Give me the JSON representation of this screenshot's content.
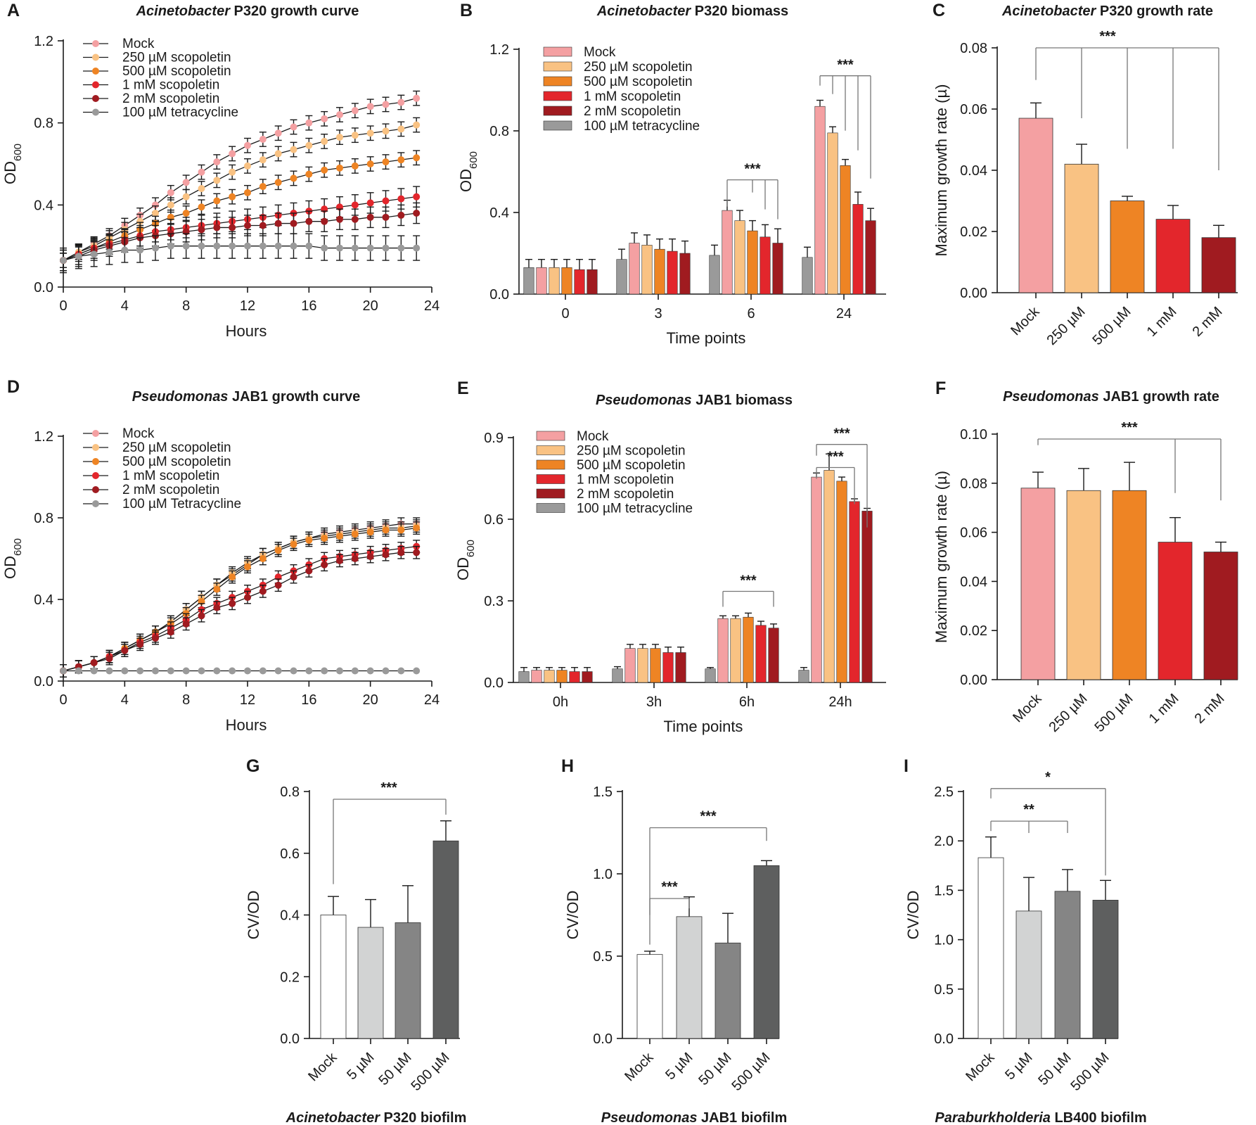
{
  "colors": {
    "mock": "#F4A0A2",
    "s250": "#F9C283",
    "s500": "#EE8424",
    "s1mM": "#E3262C",
    "s2mM": "#A01B20",
    "tetra": "#9A9A9A",
    "bf_mock": "#FFFFFF",
    "bf_low": "#D2D3D3",
    "bf_mid": "#858585",
    "bf_high": "#5E5F5F"
  },
  "chart_data": [
    {
      "id": "A",
      "type": "line",
      "title_italic": "Acinetobacter",
      "title_rest": " P320 growth curve",
      "xlabel": "Hours",
      "ylabel": "OD",
      "ylabel_sub": "600",
      "xlim": [
        0,
        24
      ],
      "ylim": [
        0,
        1.2
      ],
      "xticks": [
        0,
        4,
        8,
        12,
        16,
        20,
        24
      ],
      "yticks": [
        0.0,
        0.4,
        0.8,
        1.2
      ],
      "ytick_labels": [
        "0.0",
        "0.4",
        "0.8",
        "1.2"
      ],
      "x": [
        0,
        1,
        2,
        3,
        4,
        5,
        6,
        7,
        8,
        9,
        10,
        11,
        12,
        13,
        14,
        15,
        16,
        17,
        18,
        19,
        20,
        21,
        22,
        23
      ],
      "series": [
        {
          "name": "Mock",
          "color_key": "mock",
          "err": 0.035,
          "values": [
            0.13,
            0.17,
            0.21,
            0.25,
            0.3,
            0.35,
            0.4,
            0.46,
            0.51,
            0.56,
            0.61,
            0.65,
            0.69,
            0.72,
            0.75,
            0.78,
            0.8,
            0.82,
            0.84,
            0.86,
            0.88,
            0.89,
            0.9,
            0.92
          ]
        },
        {
          "name": "250 µM scopoletin",
          "color_key": "s250",
          "err": 0.035,
          "values": [
            0.13,
            0.17,
            0.2,
            0.24,
            0.28,
            0.32,
            0.36,
            0.4,
            0.44,
            0.48,
            0.52,
            0.56,
            0.59,
            0.62,
            0.65,
            0.67,
            0.69,
            0.71,
            0.73,
            0.74,
            0.75,
            0.76,
            0.77,
            0.79
          ]
        },
        {
          "name": "500 µM scopoletin",
          "color_key": "s500",
          "err": 0.035,
          "values": [
            0.13,
            0.16,
            0.19,
            0.22,
            0.25,
            0.28,
            0.31,
            0.34,
            0.36,
            0.39,
            0.42,
            0.44,
            0.46,
            0.49,
            0.51,
            0.53,
            0.55,
            0.57,
            0.58,
            0.59,
            0.6,
            0.61,
            0.62,
            0.63
          ]
        },
        {
          "name": "1 mM scopoletin",
          "color_key": "s1mM",
          "err": 0.05,
          "values": [
            0.13,
            0.16,
            0.19,
            0.21,
            0.23,
            0.25,
            0.27,
            0.28,
            0.29,
            0.3,
            0.31,
            0.32,
            0.33,
            0.34,
            0.35,
            0.36,
            0.37,
            0.38,
            0.39,
            0.4,
            0.41,
            0.42,
            0.43,
            0.44
          ]
        },
        {
          "name": "2 mM scopoletin",
          "color_key": "s2mM",
          "err": 0.05,
          "values": [
            0.13,
            0.15,
            0.18,
            0.2,
            0.22,
            0.24,
            0.25,
            0.26,
            0.27,
            0.28,
            0.29,
            0.29,
            0.3,
            0.3,
            0.31,
            0.31,
            0.32,
            0.32,
            0.33,
            0.33,
            0.34,
            0.34,
            0.35,
            0.36
          ]
        },
        {
          "name": "100 µM tetracycline",
          "color_key": "tetra",
          "err": 0.06,
          "values": [
            0.13,
            0.15,
            0.16,
            0.17,
            0.18,
            0.18,
            0.19,
            0.2,
            0.2,
            0.2,
            0.2,
            0.2,
            0.2,
            0.2,
            0.2,
            0.2,
            0.2,
            0.19,
            0.19,
            0.19,
            0.19,
            0.19,
            0.19,
            0.19
          ]
        }
      ]
    },
    {
      "id": "B",
      "type": "bar",
      "title_italic": "Acinetobacter",
      "title_rest": " P320 biomass",
      "xlabel": "Time points",
      "ylabel": "OD",
      "ylabel_sub": "600",
      "ylim": [
        0,
        1.2
      ],
      "yticks": [
        0.0,
        0.4,
        0.8,
        1.2
      ],
      "ytick_labels": [
        "0.0",
        "0.4",
        "0.8",
        "1.2"
      ],
      "categories": [
        "0",
        "3",
        "6",
        "24"
      ],
      "series": [
        {
          "name": "100 µM tetracycline",
          "color_key": "tetra",
          "values": [
            0.13,
            0.17,
            0.19,
            0.18
          ],
          "err": [
            0.04,
            0.05,
            0.05,
            0.05
          ]
        },
        {
          "name": "Mock",
          "color_key": "mock",
          "values": [
            0.13,
            0.25,
            0.41,
            0.92
          ],
          "err": [
            0.04,
            0.05,
            0.05,
            0.03
          ]
        },
        {
          "name": "250 µM scopoletin",
          "color_key": "s250",
          "values": [
            0.13,
            0.24,
            0.36,
            0.79
          ],
          "err": [
            0.04,
            0.05,
            0.05,
            0.03
          ]
        },
        {
          "name": "500 µM scopoletin",
          "color_key": "s500",
          "values": [
            0.13,
            0.22,
            0.31,
            0.63
          ],
          "err": [
            0.04,
            0.05,
            0.05,
            0.03
          ]
        },
        {
          "name": "1 mM scopoletin",
          "color_key": "s1mM",
          "values": [
            0.12,
            0.21,
            0.28,
            0.44
          ],
          "err": [
            0.05,
            0.06,
            0.06,
            0.06
          ]
        },
        {
          "name": "2 mM scopoletin",
          "color_key": "s2mM",
          "values": [
            0.12,
            0.2,
            0.25,
            0.36
          ],
          "err": [
            0.05,
            0.06,
            0.07,
            0.06
          ]
        }
      ],
      "legend_order": [
        "Mock",
        "250 µM scopoletin",
        "500 µM scopoletin",
        "1 mM scopoletin",
        "2 mM scopoletin",
        "100 µM tetracycline"
      ],
      "significance": [
        "***",
        "***"
      ]
    },
    {
      "id": "C",
      "type": "bar",
      "title_italic": "Acinetobacter",
      "title_rest": " P320 growth rate",
      "ylabel": "Maximum growth rate (µ)",
      "ylim": [
        0,
        0.08
      ],
      "yticks": [
        0.0,
        0.02,
        0.04,
        0.06,
        0.08
      ],
      "ytick_labels": [
        "0.00",
        "0.02",
        "0.04",
        "0.06",
        "0.08"
      ],
      "categories": [
        "Mock",
        "250 µM",
        "500 µM",
        "1 mM",
        "2 mM"
      ],
      "color_keys": [
        "mock",
        "s250",
        "s500",
        "s1mM",
        "s2mM"
      ],
      "values": [
        0.057,
        0.042,
        0.03,
        0.024,
        0.018
      ],
      "err": [
        0.005,
        0.0065,
        0.0015,
        0.0045,
        0.004
      ],
      "significance": [
        "***"
      ]
    },
    {
      "id": "D",
      "type": "line",
      "title_italic": "Pseudomonas",
      "title_rest": " JAB1 growth curve",
      "xlabel": "Hours",
      "ylabel": "OD",
      "ylabel_sub": "600",
      "xlim": [
        0,
        24
      ],
      "ylim": [
        0,
        1.2
      ],
      "xticks": [
        0,
        4,
        8,
        12,
        16,
        20,
        24
      ],
      "yticks": [
        0.0,
        0.4,
        0.8,
        1.2
      ],
      "ytick_labels": [
        "0.0",
        "0.4",
        "0.8",
        "1.2"
      ],
      "x": [
        0,
        1,
        2,
        3,
        4,
        5,
        6,
        7,
        8,
        9,
        10,
        11,
        12,
        13,
        14,
        15,
        16,
        17,
        18,
        19,
        20,
        21,
        22,
        23
      ],
      "series": [
        {
          "name": "Mock",
          "color_key": "mock",
          "err": 0.03,
          "values": [
            0.05,
            0.07,
            0.09,
            0.12,
            0.16,
            0.2,
            0.24,
            0.29,
            0.35,
            0.41,
            0.47,
            0.52,
            0.57,
            0.62,
            0.65,
            0.68,
            0.7,
            0.72,
            0.73,
            0.74,
            0.75,
            0.76,
            0.77,
            0.77
          ]
        },
        {
          "name": "250 µM scopoletin",
          "color_key": "s250",
          "err": 0.03,
          "values": [
            0.05,
            0.07,
            0.09,
            0.12,
            0.16,
            0.2,
            0.24,
            0.29,
            0.35,
            0.41,
            0.47,
            0.53,
            0.58,
            0.62,
            0.65,
            0.68,
            0.7,
            0.71,
            0.72,
            0.73,
            0.74,
            0.75,
            0.75,
            0.76
          ]
        },
        {
          "name": "500 µM scopoletin",
          "color_key": "s500",
          "err": 0.03,
          "values": [
            0.05,
            0.07,
            0.09,
            0.12,
            0.16,
            0.2,
            0.24,
            0.28,
            0.33,
            0.39,
            0.45,
            0.51,
            0.56,
            0.6,
            0.64,
            0.67,
            0.69,
            0.7,
            0.71,
            0.72,
            0.73,
            0.74,
            0.74,
            0.75
          ]
        },
        {
          "name": "1 mM scopoletin",
          "color_key": "s1mM",
          "err": 0.03,
          "values": [
            0.05,
            0.07,
            0.09,
            0.12,
            0.15,
            0.19,
            0.22,
            0.26,
            0.3,
            0.35,
            0.38,
            0.41,
            0.44,
            0.47,
            0.51,
            0.54,
            0.57,
            0.6,
            0.61,
            0.62,
            0.63,
            0.64,
            0.65,
            0.66
          ]
        },
        {
          "name": "2 mM scopoletin",
          "color_key": "s2mM",
          "err": 0.03,
          "values": [
            0.05,
            0.07,
            0.09,
            0.11,
            0.15,
            0.18,
            0.21,
            0.24,
            0.28,
            0.32,
            0.36,
            0.38,
            0.41,
            0.44,
            0.47,
            0.51,
            0.54,
            0.57,
            0.59,
            0.6,
            0.61,
            0.62,
            0.63,
            0.63
          ]
        },
        {
          "name": "100 µM Tetracycline",
          "color_key": "tetra",
          "err": 0.005,
          "values": [
            0.05,
            0.05,
            0.05,
            0.05,
            0.05,
            0.05,
            0.05,
            0.05,
            0.05,
            0.05,
            0.05,
            0.05,
            0.05,
            0.05,
            0.05,
            0.05,
            0.05,
            0.05,
            0.05,
            0.05,
            0.05,
            0.05,
            0.05,
            0.05
          ]
        }
      ]
    },
    {
      "id": "E",
      "type": "bar",
      "title_italic": "Pseudomonas",
      "title_rest": " JAB1 biomass",
      "xlabel": "Time points",
      "ylabel": "OD",
      "ylabel_sub": "600",
      "ylim": [
        0,
        0.9
      ],
      "yticks": [
        0.0,
        0.3,
        0.6,
        0.9
      ],
      "ytick_labels": [
        "0.0",
        "0.3",
        "0.6",
        "0.9"
      ],
      "categories": [
        "0h",
        "3h",
        "6h",
        "24h"
      ],
      "series": [
        {
          "name": "100 µM tetracycline",
          "color_key": "tetra",
          "values": [
            0.04,
            0.05,
            0.05,
            0.045
          ],
          "err": [
            0.015,
            0.008,
            0.005,
            0.01
          ]
        },
        {
          "name": "Mock",
          "color_key": "mock",
          "values": [
            0.045,
            0.125,
            0.235,
            0.755
          ],
          "err": [
            0.01,
            0.015,
            0.01,
            0.015
          ]
        },
        {
          "name": "250 µM scopoletin",
          "color_key": "s250",
          "values": [
            0.045,
            0.125,
            0.235,
            0.78
          ],
          "err": [
            0.01,
            0.015,
            0.01,
            0.06
          ]
        },
        {
          "name": "500 µM scopoletin",
          "color_key": "s500",
          "values": [
            0.045,
            0.125,
            0.24,
            0.74
          ],
          "err": [
            0.01,
            0.015,
            0.015,
            0.015
          ]
        },
        {
          "name": "1 mM scopoletin",
          "color_key": "s1mM",
          "values": [
            0.04,
            0.11,
            0.21,
            0.665
          ],
          "err": [
            0.015,
            0.02,
            0.015,
            0.01
          ]
        },
        {
          "name": "2 mM scopoletin",
          "color_key": "s2mM",
          "values": [
            0.04,
            0.11,
            0.2,
            0.63
          ],
          "err": [
            0.015,
            0.02,
            0.015,
            0.01
          ]
        }
      ],
      "legend_order": [
        "Mock",
        "250 µM scopoletin",
        "500 µM scopoletin",
        "1 mM scopoletin",
        "2 mM scopoletin",
        "100 µM tetracycline"
      ],
      "significance": [
        "***",
        "***",
        "***"
      ]
    },
    {
      "id": "F",
      "type": "bar",
      "title_italic": "Pseudomonas",
      "title_rest": " JAB1 growth rate",
      "ylabel": "Maximum growth rate (µ)",
      "ylim": [
        0,
        0.1
      ],
      "yticks": [
        0.0,
        0.02,
        0.04,
        0.06,
        0.08,
        0.1
      ],
      "ytick_labels": [
        "0.00",
        "0.02",
        "0.04",
        "0.06",
        "0.08",
        "0.10"
      ],
      "categories": [
        "Mock",
        "250 µM",
        "500 µM",
        "1 mM",
        "2 mM"
      ],
      "color_keys": [
        "mock",
        "s250",
        "s500",
        "s1mM",
        "s2mM"
      ],
      "values": [
        0.078,
        0.077,
        0.077,
        0.056,
        0.052
      ],
      "err": [
        0.0065,
        0.009,
        0.0115,
        0.01,
        0.004
      ],
      "significance": [
        "***"
      ]
    },
    {
      "id": "G",
      "type": "bar",
      "bottom_title_italic": "Acinetobacter",
      "bottom_title_rest": " P320 biofilm",
      "ylabel": "CV/OD",
      "ylim": [
        0,
        0.8
      ],
      "yticks": [
        0.0,
        0.2,
        0.4,
        0.6,
        0.8
      ],
      "ytick_labels": [
        "0.0",
        "0.2",
        "0.4",
        "0.6",
        "0.8"
      ],
      "categories": [
        "Mock",
        "5 µM",
        "50 µM",
        "500 µM"
      ],
      "color_keys": [
        "bf_mock",
        "bf_low",
        "bf_mid",
        "bf_high"
      ],
      "values": [
        0.4,
        0.36,
        0.375,
        0.64
      ],
      "err": [
        0.06,
        0.09,
        0.12,
        0.065
      ],
      "significance": [
        "***"
      ]
    },
    {
      "id": "H",
      "type": "bar",
      "bottom_title_italic": "Pseudomonas",
      "bottom_title_rest": " JAB1 biofilm",
      "ylabel": "CV/OD",
      "ylim": [
        0,
        1.5
      ],
      "yticks": [
        0.0,
        0.5,
        1.0,
        1.5
      ],
      "ytick_labels": [
        "0.0",
        "0.5",
        "1.0",
        "1.5"
      ],
      "categories": [
        "Mock",
        "5 µM",
        "50 µM",
        "500 µM"
      ],
      "color_keys": [
        "bf_mock",
        "bf_low",
        "bf_mid",
        "bf_high"
      ],
      "values": [
        0.51,
        0.74,
        0.58,
        1.05
      ],
      "err": [
        0.02,
        0.12,
        0.18,
        0.03
      ],
      "significance": [
        "***",
        "***"
      ]
    },
    {
      "id": "I",
      "type": "bar",
      "bottom_title_italic": "Paraburkholderia",
      "bottom_title_rest": " LB400 biofilm",
      "ylabel": "CV/OD",
      "ylim": [
        0,
        2.5
      ],
      "yticks": [
        0.0,
        0.5,
        1.0,
        1.5,
        2.0,
        2.5
      ],
      "ytick_labels": [
        "0.0",
        "0.5",
        "1.0",
        "1.5",
        "2.0",
        "2.5"
      ],
      "categories": [
        "Mock",
        "5 µM",
        "50 µM",
        "500 µM"
      ],
      "color_keys": [
        "bf_mock",
        "bf_low",
        "bf_mid",
        "bf_high"
      ],
      "values": [
        1.83,
        1.29,
        1.49,
        1.4
      ],
      "err": [
        0.21,
        0.34,
        0.22,
        0.2
      ],
      "significance": [
        "**",
        "*"
      ]
    }
  ]
}
